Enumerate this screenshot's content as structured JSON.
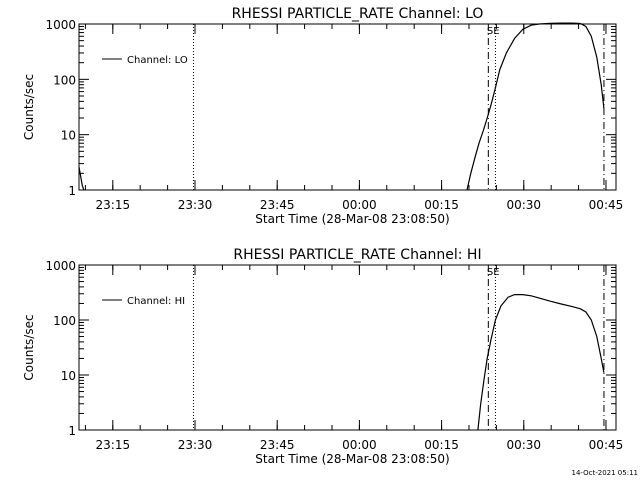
{
  "footer": {
    "timestamp": "14-Oct-2021 05:11"
  },
  "chart_data": [
    {
      "type": "line",
      "title": "RHESSI PARTICLE_RATE Channel: LO",
      "xlabel": "Start Time (28-Mar-08 23:08:50)",
      "ylabel": "Counts/sec",
      "x_unit": "minutes after 23:08:50",
      "xlim": [
        0,
        98
      ],
      "ylim": [
        1,
        1000
      ],
      "y_scale": "log",
      "x_ticks": [
        {
          "label": "23:15",
          "x": 6.17
        },
        {
          "label": "23:30",
          "x": 21.17
        },
        {
          "label": "23:45",
          "x": 36.17
        },
        {
          "label": "00:00",
          "x": 51.17
        },
        {
          "label": "00:15",
          "x": 66.17
        },
        {
          "label": "00:30",
          "x": 81.17
        },
        {
          "label": "00:45",
          "x": 96.17
        }
      ],
      "y_ticks": [
        {
          "label": "1",
          "y": 1
        },
        {
          "label": "10",
          "y": 10
        },
        {
          "label": "100",
          "y": 100
        },
        {
          "label": "1000",
          "y": 1000
        }
      ],
      "legend": {
        "label": "Channel: LO",
        "position": "top-left"
      },
      "annotations": [
        {
          "text": "SE",
          "x": 75.6
        }
      ],
      "vlines": [
        {
          "x": 20.9,
          "style": "dotted"
        },
        {
          "x": 74.7,
          "style": "dashdot"
        },
        {
          "x": 76.0,
          "style": "dotted"
        },
        {
          "x": 95.8,
          "style": "dashdot"
        }
      ],
      "series": [
        {
          "segments": [
            [
              [
                0.0,
                2.6
              ],
              [
                0.3,
                1.8
              ],
              [
                0.6,
                1.2
              ],
              [
                0.9,
                1.0
              ]
            ],
            [
              [
                70.8,
                1.0
              ],
              [
                71.5,
                2.0
              ],
              [
                72.3,
                4.0
              ],
              [
                73.0,
                7.0
              ],
              [
                73.8,
                12
              ],
              [
                74.5,
                20
              ],
              [
                75.2,
                35
              ],
              [
                76.0,
                70
              ],
              [
                76.8,
                150
              ],
              [
                78.0,
                300
              ],
              [
                79.5,
                550
              ],
              [
                81.0,
                800
              ],
              [
                82.5,
                950
              ],
              [
                84.0,
                1000
              ],
              [
                86.0,
                1030
              ],
              [
                88.0,
                1040
              ],
              [
                90.0,
                1040
              ],
              [
                91.5,
                1020
              ],
              [
                92.5,
                900
              ],
              [
                93.5,
                600
              ],
              [
                94.5,
                250
              ],
              [
                95.3,
                80
              ],
              [
                95.8,
                30
              ]
            ]
          ]
        }
      ]
    },
    {
      "type": "line",
      "title": "RHESSI PARTICLE_RATE Channel: HI",
      "xlabel": "Start Time (28-Mar-08 23:08:50)",
      "ylabel": "Counts/sec",
      "x_unit": "minutes after 23:08:50",
      "xlim": [
        0,
        98
      ],
      "ylim": [
        1,
        1000
      ],
      "y_scale": "log",
      "x_ticks": [
        {
          "label": "23:15",
          "x": 6.17
        },
        {
          "label": "23:30",
          "x": 21.17
        },
        {
          "label": "23:45",
          "x": 36.17
        },
        {
          "label": "00:00",
          "x": 51.17
        },
        {
          "label": "00:15",
          "x": 66.17
        },
        {
          "label": "00:30",
          "x": 81.17
        },
        {
          "label": "00:45",
          "x": 96.17
        }
      ],
      "y_ticks": [
        {
          "label": "1",
          "y": 1
        },
        {
          "label": "10",
          "y": 10
        },
        {
          "label": "100",
          "y": 100
        },
        {
          "label": "1000",
          "y": 1000
        }
      ],
      "legend": {
        "label": "Channel: HI",
        "position": "top-left"
      },
      "annotations": [
        {
          "text": "SE",
          "x": 75.6
        }
      ],
      "vlines": [
        {
          "x": 20.9,
          "style": "dotted"
        },
        {
          "x": 74.7,
          "style": "dashdot"
        },
        {
          "x": 76.0,
          "style": "dotted"
        },
        {
          "x": 95.8,
          "style": "dashdot"
        }
      ],
      "series": [
        {
          "segments": [
            [
              [
                72.8,
                1.0
              ],
              [
                73.3,
                3.0
              ],
              [
                73.9,
                8.0
              ],
              [
                74.5,
                20
              ],
              [
                75.2,
                45
              ],
              [
                76.0,
                100
              ],
              [
                77.0,
                180
              ],
              [
                78.3,
                260
              ],
              [
                79.5,
                290
              ],
              [
                81.0,
                290
              ],
              [
                82.5,
                275
              ],
              [
                84.0,
                250
              ],
              [
                86.0,
                220
              ],
              [
                88.0,
                195
              ],
              [
                90.0,
                175
              ],
              [
                91.5,
                160
              ],
              [
                92.5,
                140
              ],
              [
                93.5,
                100
              ],
              [
                94.5,
                50
              ],
              [
                95.3,
                20
              ],
              [
                95.8,
                11
              ]
            ]
          ]
        }
      ]
    }
  ]
}
